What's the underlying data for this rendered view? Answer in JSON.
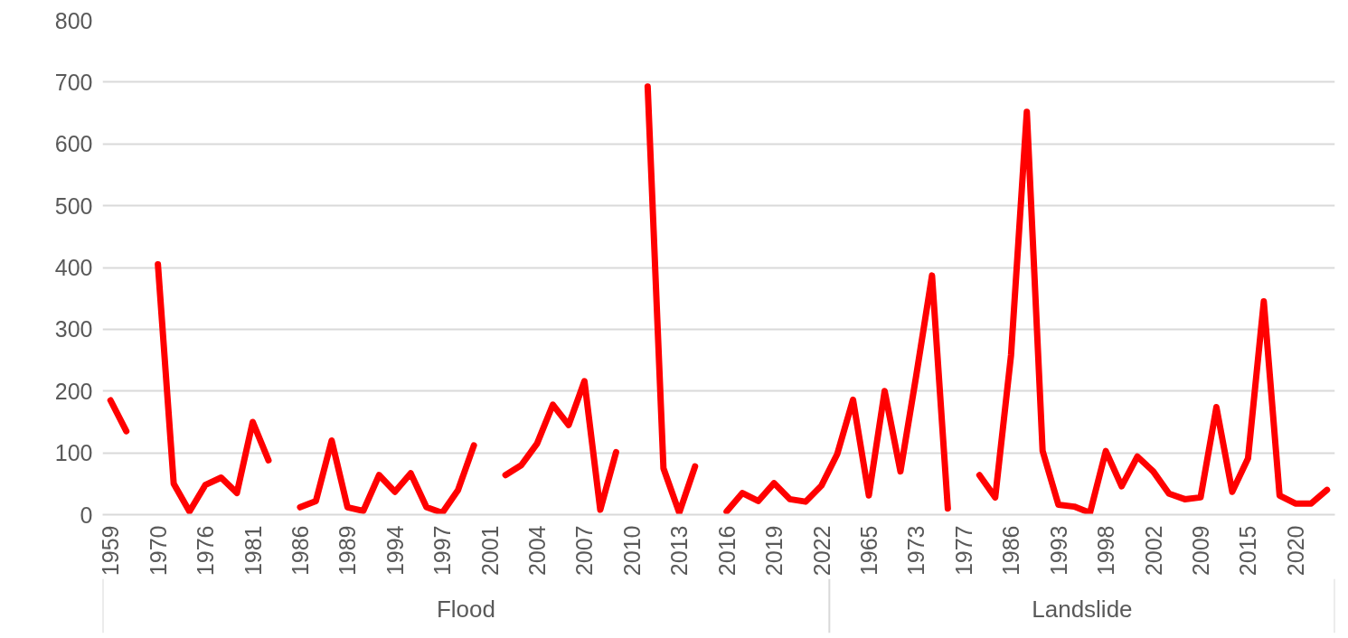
{
  "chart_data": {
    "type": "line",
    "categories": [
      "1959",
      null,
      null,
      "1970",
      null,
      null,
      "1976",
      null,
      null,
      "1981",
      null,
      null,
      "1986",
      null,
      null,
      "1989",
      null,
      null,
      "1994",
      null,
      null,
      "1997",
      null,
      null,
      "2001",
      null,
      null,
      "2004",
      null,
      null,
      "2007",
      null,
      null,
      "2010",
      null,
      null,
      "2013",
      null,
      null,
      "2016",
      null,
      null,
      "2019",
      null,
      null,
      "2022",
      null,
      null,
      "1965",
      null,
      null,
      "1973",
      null,
      null,
      "1977",
      null,
      null,
      "1986",
      null,
      null,
      "1993",
      null,
      null,
      "1998",
      null,
      null,
      "2002",
      null,
      null,
      "2009",
      null,
      null,
      "2015",
      null,
      null,
      "2020",
      null,
      null
    ],
    "series": [
      {
        "color": "#ff0000",
        "values": [
          185,
          135,
          null,
          405,
          50,
          5,
          48,
          60,
          35,
          150,
          88,
          null,
          12,
          22,
          120,
          12,
          6,
          64,
          37,
          67,
          12,
          3,
          40,
          112,
          null,
          64,
          80,
          115,
          178,
          145,
          216,
          8,
          101,
          null,
          693,
          75,
          3,
          78,
          null,
          5,
          35,
          22,
          51,
          25,
          21,
          47,
          98,
          186,
          31,
          200,
          70,
          225,
          387,
          10,
          null,
          64,
          28,
          258,
          652,
          103,
          16,
          13,
          3,
          103,
          46,
          94,
          70,
          34,
          25,
          28,
          174,
          37,
          91,
          345,
          31,
          18,
          18,
          40
        ]
      }
    ],
    "ylim": [
      0,
      800
    ],
    "yticks": [
      0,
      100,
      200,
      300,
      400,
      500,
      600,
      700,
      800
    ],
    "grid": "y",
    "line_style": "solid",
    "marker": "none",
    "annotations": [
      "Flood",
      "Landslide"
    ]
  }
}
